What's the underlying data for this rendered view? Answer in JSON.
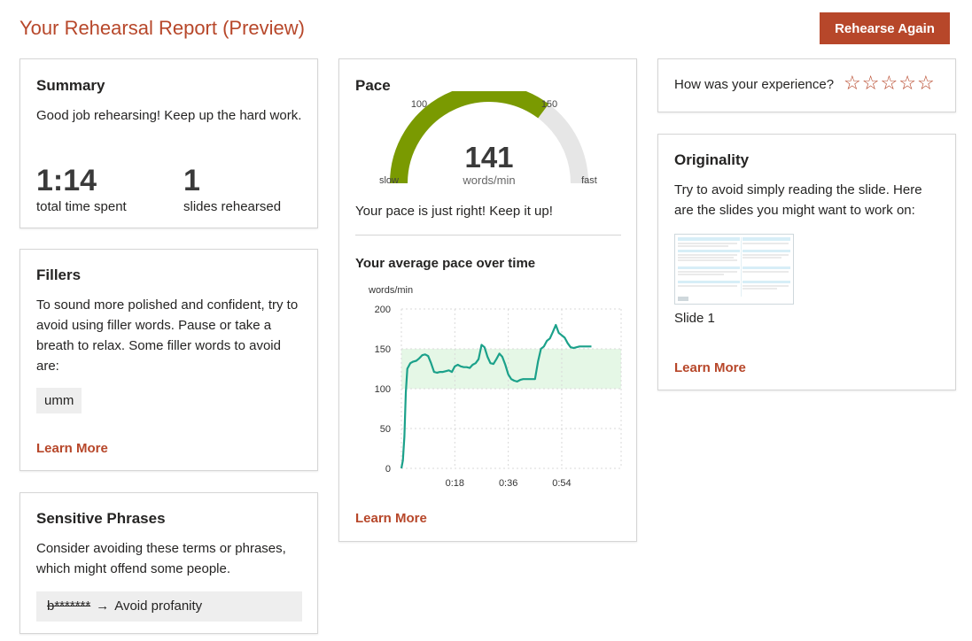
{
  "page": {
    "title": "Your Rehearsal Report (Preview)",
    "rehearse_again_label": "Rehearse Again"
  },
  "summary": {
    "title": "Summary",
    "message": "Good job rehearsing! Keep up the hard work.",
    "time_value": "1:14",
    "time_label": "total time spent",
    "slides_value": "1",
    "slides_label": "slides rehearsed"
  },
  "fillers": {
    "title": "Fillers",
    "message": "To sound more polished and confident, try to avoid using filler words. Pause or take a breath to relax. Some filler words to avoid are:",
    "words": [
      "umm"
    ],
    "learn_more": "Learn More"
  },
  "sensitive": {
    "title": "Sensitive Phrases",
    "message": "Consider avoiding these terms or phrases, which might offend some people.",
    "phrases": [
      {
        "term": "b*******",
        "arrow": "→",
        "suggestion": "Avoid profanity"
      }
    ]
  },
  "pace": {
    "title": "Pace",
    "gauge": {
      "value": 141,
      "unit": "words/min",
      "min_label": "slow",
      "max_label": "fast",
      "mark_low": "100",
      "mark_high": "150",
      "scale_min": 0,
      "scale_max": 200,
      "fill_color": "#7a9a01",
      "track_color": "#e6e6e6"
    },
    "message": "Your pace is just right! Keep it up!",
    "chart_title": "Your average pace over time",
    "learn_more": "Learn More"
  },
  "experience": {
    "question": "How was your experience?",
    "stars": [
      "☆",
      "☆",
      "☆",
      "☆",
      "☆"
    ],
    "rating": 0
  },
  "originality": {
    "title": "Originality",
    "message": "Try to avoid simply reading the slide. Here are the slides you might want to work on:",
    "slides": [
      "Slide 1"
    ],
    "learn_more": "Learn More"
  },
  "colors": {
    "accent": "#b7472a",
    "line": "#1ba18a",
    "band": "#e5f7e6"
  },
  "chart_data": {
    "type": "line",
    "title": "Your average pace over time",
    "ylabel": "words/min",
    "xlabel": "",
    "ylim": [
      0,
      200
    ],
    "yticks": [
      0,
      50,
      100,
      150,
      200
    ],
    "xlim": [
      0,
      74
    ],
    "xticks": [
      "0:18",
      "0:36",
      "0:54"
    ],
    "xtick_values": [
      18,
      36,
      54
    ],
    "target_band": [
      100,
      150
    ],
    "grid": true,
    "series": [
      {
        "x": [
          0,
          0.5,
          1,
          1.5,
          2,
          3,
          4,
          5,
          6,
          7,
          8,
          9,
          10,
          11,
          12,
          13,
          14,
          15,
          16,
          17,
          18,
          19,
          20,
          21,
          22,
          23,
          24,
          25,
          26,
          27,
          28,
          29,
          30,
          31,
          32,
          33,
          34,
          35,
          36,
          37,
          38,
          39,
          40,
          41,
          42,
          43,
          44,
          45,
          46,
          47,
          48,
          49,
          50,
          51,
          52,
          53,
          54,
          55,
          56,
          57,
          58,
          59,
          60,
          61,
          62,
          63,
          64
        ],
        "y": [
          0,
          10,
          40,
          95,
          125,
          132,
          134,
          135,
          138,
          142,
          143,
          141,
          132,
          121,
          120,
          121,
          121,
          122,
          123,
          121,
          128,
          130,
          128,
          127,
          127,
          126,
          130,
          132,
          137,
          155,
          152,
          140,
          132,
          131,
          137,
          144,
          140,
          130,
          118,
          112,
          110,
          109,
          111,
          112,
          112,
          112,
          112,
          112,
          134,
          150,
          153,
          160,
          163,
          171,
          180,
          170,
          167,
          164,
          157,
          152,
          151,
          152,
          153,
          153,
          153,
          153,
          153
        ]
      }
    ]
  }
}
